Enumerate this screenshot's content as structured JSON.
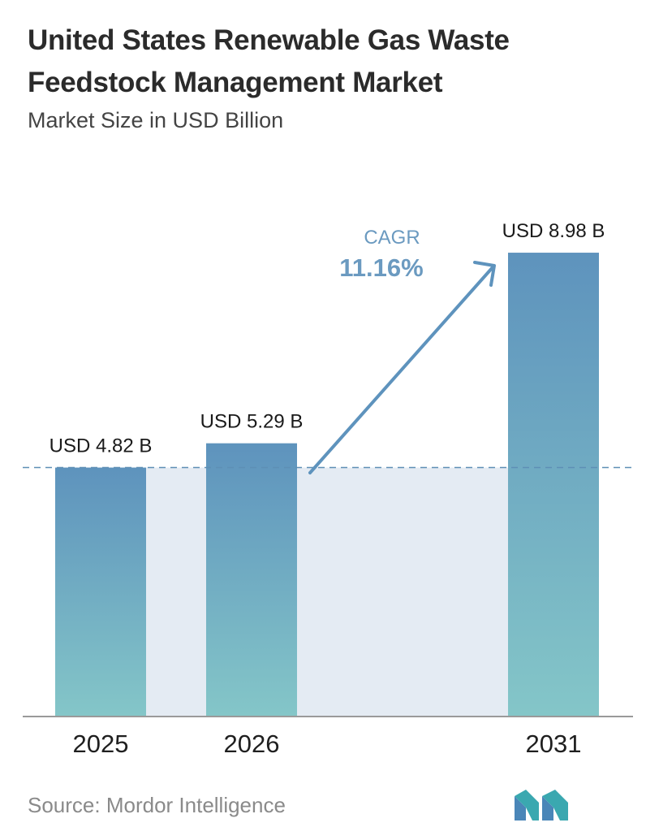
{
  "header": {
    "title": "United States Renewable Gas Waste Feedstock Management Market",
    "subtitle": "Market Size in USD Billion"
  },
  "footer": {
    "source": "Source:  Mordor Intelligence"
  },
  "cagr": {
    "label": "CAGR",
    "value": "11.16%"
  },
  "colors": {
    "bar_top": "#5e93bd",
    "bar_bottom": "#84c6c8",
    "band": "#e4ebf3",
    "cagr_text": "#6b9ac0",
    "arrow": "#5e93bd",
    "dashed_line": "#5e8fb5",
    "axis": "#9a9a9a"
  },
  "chart_data": {
    "type": "bar",
    "title": "United States Renewable Gas Waste Feedstock Management Market",
    "subtitle": "Market Size in USD Billion",
    "categories": [
      "2025",
      "2026",
      "2031"
    ],
    "values": [
      4.82,
      5.29,
      8.98
    ],
    "data_labels": [
      "USD 4.82 B",
      "USD 5.29 B",
      "USD 8.98 B"
    ],
    "ylim": [
      0,
      10
    ],
    "grid": false,
    "legend": "none"
  }
}
